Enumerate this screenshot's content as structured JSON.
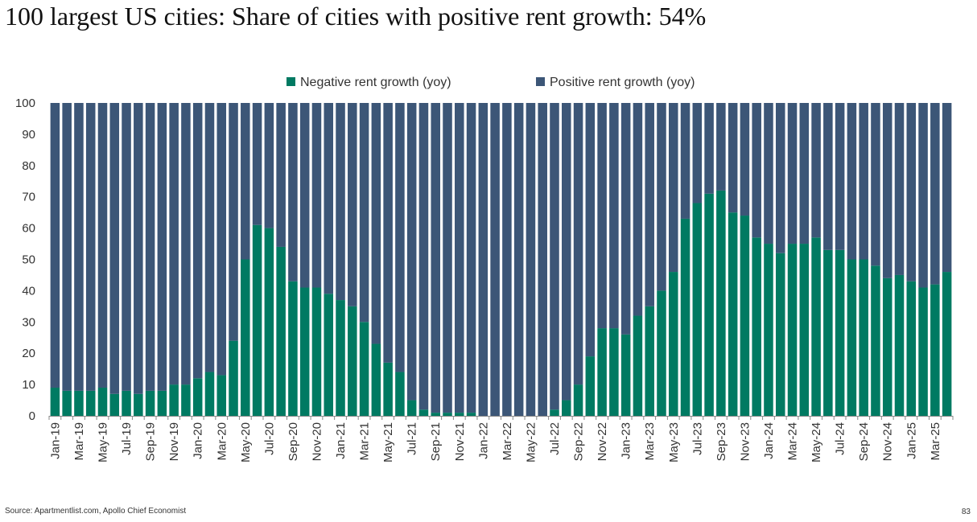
{
  "header": {
    "title": "100 largest US cities: Share of cities with positive rent growth: 54%"
  },
  "footer": {
    "source": "Source: Apartmentlist.com, Apollo Chief Economist",
    "page_number": "83"
  },
  "colors": {
    "negative": "#007A62",
    "positive": "#3C5677"
  },
  "chart_data": {
    "type": "bar",
    "stacked": true,
    "title": "",
    "xlabel": "",
    "ylabel": "",
    "ylim": [
      0,
      100
    ],
    "yticks": [
      0,
      10,
      20,
      30,
      40,
      50,
      60,
      70,
      80,
      90,
      100
    ],
    "legend_position": "top",
    "grid": false,
    "categories": [
      "Jan-19",
      "Feb-19",
      "Mar-19",
      "Apr-19",
      "May-19",
      "Jun-19",
      "Jul-19",
      "Aug-19",
      "Sep-19",
      "Oct-19",
      "Nov-19",
      "Dec-19",
      "Jan-20",
      "Feb-20",
      "Mar-20",
      "Apr-20",
      "May-20",
      "Jun-20",
      "Jul-20",
      "Aug-20",
      "Sep-20",
      "Oct-20",
      "Nov-20",
      "Dec-20",
      "Jan-21",
      "Feb-21",
      "Mar-21",
      "Apr-21",
      "May-21",
      "Jun-21",
      "Jul-21",
      "Aug-21",
      "Sep-21",
      "Oct-21",
      "Nov-21",
      "Dec-21",
      "Jan-22",
      "Feb-22",
      "Mar-22",
      "Apr-22",
      "May-22",
      "Jun-22",
      "Jul-22",
      "Aug-22",
      "Sep-22",
      "Oct-22",
      "Nov-22",
      "Dec-22",
      "Jan-23",
      "Feb-23",
      "Mar-23",
      "Apr-23",
      "May-23",
      "Jun-23",
      "Jul-23",
      "Aug-23",
      "Sep-23",
      "Oct-23",
      "Nov-23",
      "Dec-23",
      "Jan-24",
      "Feb-24",
      "Mar-24",
      "Apr-24",
      "May-24",
      "Jun-24",
      "Jul-24",
      "Aug-24",
      "Sep-24",
      "Oct-24",
      "Nov-24",
      "Dec-24",
      "Jan-25",
      "Feb-25",
      "Mar-25",
      "Apr-25"
    ],
    "series": [
      {
        "name": "Negative rent growth (yoy)",
        "values": [
          9,
          8,
          8,
          8,
          9,
          7,
          8,
          7,
          8,
          8,
          10,
          10,
          12,
          14,
          13,
          24,
          50,
          61,
          60,
          54,
          43,
          41,
          41,
          39,
          37,
          35,
          30,
          23,
          17,
          14,
          5,
          2,
          1,
          1,
          1,
          1,
          0,
          0,
          0,
          0,
          0,
          0,
          2,
          5,
          10,
          19,
          28,
          28,
          26,
          32,
          35,
          40,
          46,
          63,
          68,
          71,
          72,
          65,
          64,
          57,
          55,
          52,
          55,
          55,
          57,
          53,
          53,
          50,
          50,
          48,
          44,
          45,
          43,
          41,
          42,
          46
        ]
      },
      {
        "name": "Positive rent growth (yoy)",
        "values": [
          91,
          92,
          92,
          92,
          91,
          93,
          92,
          93,
          92,
          92,
          90,
          90,
          88,
          86,
          87,
          76,
          50,
          39,
          40,
          46,
          57,
          59,
          59,
          61,
          63,
          65,
          70,
          77,
          83,
          86,
          95,
          98,
          99,
          99,
          99,
          99,
          100,
          100,
          100,
          100,
          100,
          100,
          98,
          95,
          90,
          81,
          72,
          72,
          74,
          68,
          65,
          60,
          54,
          37,
          32,
          29,
          28,
          35,
          36,
          43,
          45,
          48,
          45,
          45,
          43,
          47,
          47,
          50,
          50,
          52,
          56,
          55,
          57,
          59,
          58,
          54
        ]
      }
    ]
  }
}
